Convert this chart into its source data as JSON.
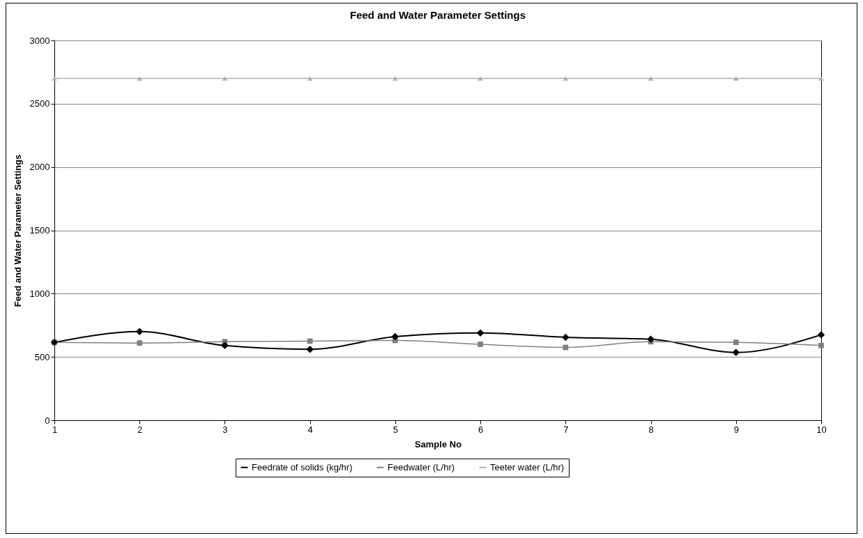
{
  "chart_data": {
    "type": "line",
    "title": "Feed and Water Parameter Settings",
    "xlabel": "Sample No",
    "ylabel": "Feed and Water Parameter Settings",
    "x": [
      1,
      2,
      3,
      4,
      5,
      6,
      7,
      8,
      9,
      10
    ],
    "series": [
      {
        "name": "Feedrate of solids (kg/hr)",
        "color": "#000000",
        "marker": "diamond",
        "values": [
          615,
          700,
          590,
          560,
          660,
          690,
          655,
          640,
          535,
          675
        ]
      },
      {
        "name": "Feedwater (L/hr)",
        "color": "#808080",
        "marker": "square",
        "values": [
          615,
          610,
          620,
          625,
          630,
          600,
          575,
          620,
          615,
          590
        ]
      },
      {
        "name": "Teeter water (L/hr)",
        "color": "#b0b0b0",
        "marker": "triangle",
        "values": [
          2700,
          2700,
          2700,
          2700,
          2700,
          2700,
          2700,
          2700,
          2700,
          2700
        ]
      }
    ],
    "xlim": [
      1,
      10
    ],
    "xticks": [
      1,
      2,
      3,
      4,
      5,
      6,
      7,
      8,
      9,
      10
    ],
    "ylim": [
      0,
      3000
    ],
    "yticks": [
      0,
      500,
      1000,
      1500,
      2000,
      2500,
      3000
    ],
    "grid": "y",
    "legend": "bottom",
    "line_style": "solid"
  }
}
